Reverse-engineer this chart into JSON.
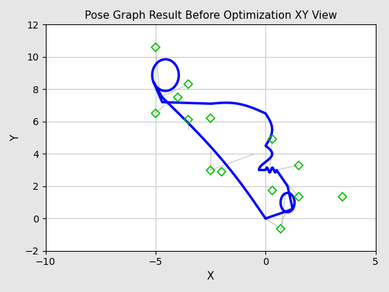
{
  "title": "Pose Graph Result Before Optimization XY View",
  "xlabel": "X",
  "ylabel": "Y",
  "xlim": [
    -10,
    5
  ],
  "ylim": [
    -2,
    12
  ],
  "xticks": [
    -10,
    -5,
    0,
    5
  ],
  "yticks": [
    -2,
    0,
    2,
    4,
    6,
    8,
    10,
    12
  ],
  "background_color": "#e6e6e6",
  "axes_background": "#ffffff",
  "grid_color": "#c8c8c8",
  "traj_color": "#0000ff",
  "traj_linewidth": 2.5,
  "marker_color": "#00bb00",
  "marker_size": 6,
  "loop_color": "#c0c0c0",
  "loop_linewidth": 0.8,
  "markers_x": [
    -5.0,
    -3.5,
    -4.0,
    -5.0,
    -3.5,
    -2.5,
    0.3,
    -2.5,
    -2.0,
    0.3,
    1.5,
    1.5,
    0.7,
    3.5
  ],
  "markers_y": [
    10.6,
    8.3,
    7.5,
    6.5,
    6.1,
    6.2,
    4.9,
    3.0,
    2.9,
    1.75,
    3.3,
    1.35,
    -0.65,
    1.35
  ],
  "loop_pairs": [
    [
      [
        -4.8,
        7.5
      ],
      [
        -5.0,
        10.6
      ]
    ],
    [
      [
        -4.8,
        7.5
      ],
      [
        -3.5,
        8.3
      ]
    ],
    [
      [
        -4.6,
        7.0
      ],
      [
        -5.0,
        6.5
      ]
    ],
    [
      [
        -4.5,
        7.0
      ],
      [
        -4.0,
        7.5
      ]
    ],
    [
      [
        -3.5,
        5.5
      ],
      [
        -3.5,
        6.1
      ]
    ],
    [
      [
        -2.5,
        4.2
      ],
      [
        -2.5,
        3.0
      ]
    ],
    [
      [
        -0.5,
        4.0
      ],
      [
        -2.5,
        3.0
      ]
    ],
    [
      [
        0.2,
        3.1
      ],
      [
        0.3,
        4.9
      ]
    ],
    [
      [
        0.5,
        3.0
      ],
      [
        1.5,
        3.3
      ]
    ],
    [
      [
        0.7,
        2.6
      ],
      [
        1.5,
        1.35
      ]
    ],
    [
      [
        0.9,
        1.5
      ],
      [
        0.7,
        -0.65
      ]
    ],
    [
      [
        0.8,
        0.05
      ],
      [
        0.7,
        -0.65
      ]
    ],
    [
      [
        0.8,
        0.05
      ],
      [
        1.5,
        1.35
      ]
    ],
    [
      [
        0.0,
        0.0
      ],
      [
        0.7,
        -0.65
      ]
    ]
  ]
}
